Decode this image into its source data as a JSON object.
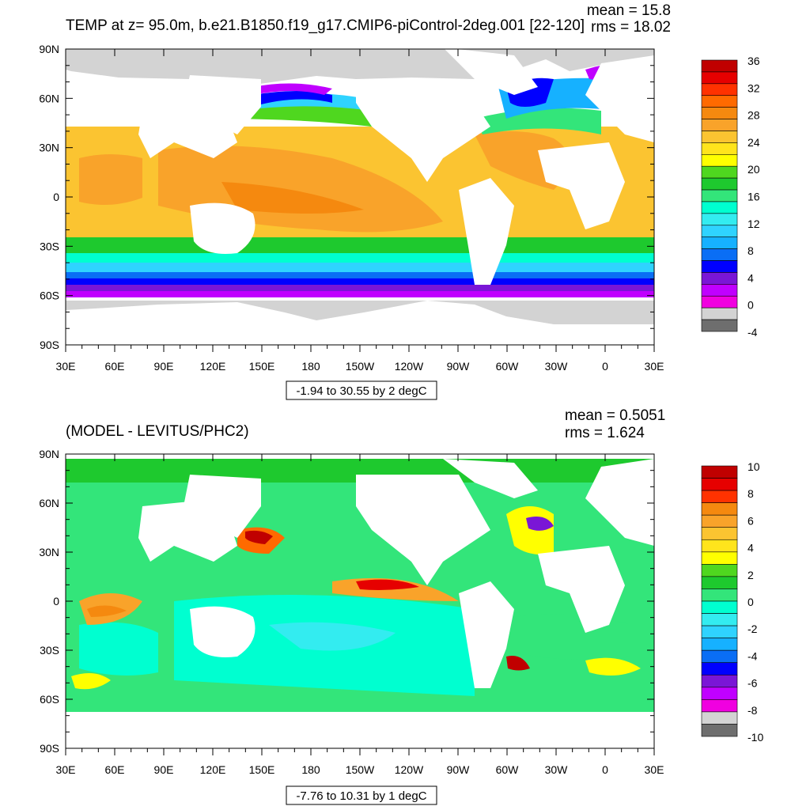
{
  "chart_data": [
    {
      "type": "heatmap",
      "title": "TEMP at z=  95.0m, b.e21.B1850.f19_g17.CMIP6-piControl-2deg.001 [22-120]",
      "stats": [
        "mean = 15.8",
        "rms = 18.02"
      ],
      "range_label": "-1.94 to 30.55 by 2 degC",
      "x_ticks": [
        "30E",
        "60E",
        "90E",
        "120E",
        "150E",
        "180",
        "150W",
        "120W",
        "90W",
        "60W",
        "30W",
        "0",
        "30E"
      ],
      "y_ticks": [
        "90N",
        "60N",
        "30N",
        "0",
        "30S",
        "60S",
        "90S"
      ],
      "ylim": [
        -90,
        90
      ],
      "xlim": [
        30,
        390
      ],
      "colorbar": {
        "labels": [
          "36",
          "32",
          "28",
          "24",
          "20",
          "16",
          "12",
          "8",
          "4",
          "0",
          "-4"
        ],
        "colors": [
          "#c00000",
          "#e60000",
          "#ff3200",
          "#ff6a00",
          "#f5890f",
          "#f9a32a",
          "#fbc431",
          "#ffe41c",
          "#ffff00",
          "#4fd71f",
          "#1ec92e",
          "#33e57a",
          "#00ffd0",
          "#33ecf0",
          "#2fd3ff",
          "#16b1ff",
          "#0a6ef5",
          "#0000ff",
          "#7a16d6",
          "#c000ff",
          "#f000e0",
          "#d3d3d3",
          "#6e6e6e"
        ]
      }
    },
    {
      "type": "heatmap",
      "title": "(MODEL - LEVITUS/PHC2)",
      "stats": [
        "mean = 0.5051",
        "rms = 1.624"
      ],
      "range_label": "-7.76 to 10.31 by 1 degC",
      "x_ticks": [
        "30E",
        "60E",
        "90E",
        "120E",
        "150E",
        "180",
        "150W",
        "120W",
        "90W",
        "60W",
        "30W",
        "0",
        "30E"
      ],
      "y_ticks": [
        "90N",
        "60N",
        "30N",
        "0",
        "30S",
        "60S",
        "90S"
      ],
      "ylim": [
        -90,
        90
      ],
      "xlim": [
        30,
        390
      ],
      "colorbar": {
        "labels": [
          "10",
          "8",
          "6",
          "4",
          "2",
          "0",
          "-2",
          "-4",
          "-6",
          "-8",
          "-10"
        ],
        "colors": [
          "#c00000",
          "#e60000",
          "#ff3200",
          "#f5890f",
          "#f9a32a",
          "#fbc431",
          "#ffe41c",
          "#ffff00",
          "#4fd71f",
          "#1ec92e",
          "#33e57a",
          "#00ffd0",
          "#33ecf0",
          "#2fd3ff",
          "#16b1ff",
          "#0a6ef5",
          "#0000ff",
          "#7a16d6",
          "#c000ff",
          "#f000e0",
          "#d3d3d3",
          "#6e6e6e"
        ]
      }
    }
  ]
}
